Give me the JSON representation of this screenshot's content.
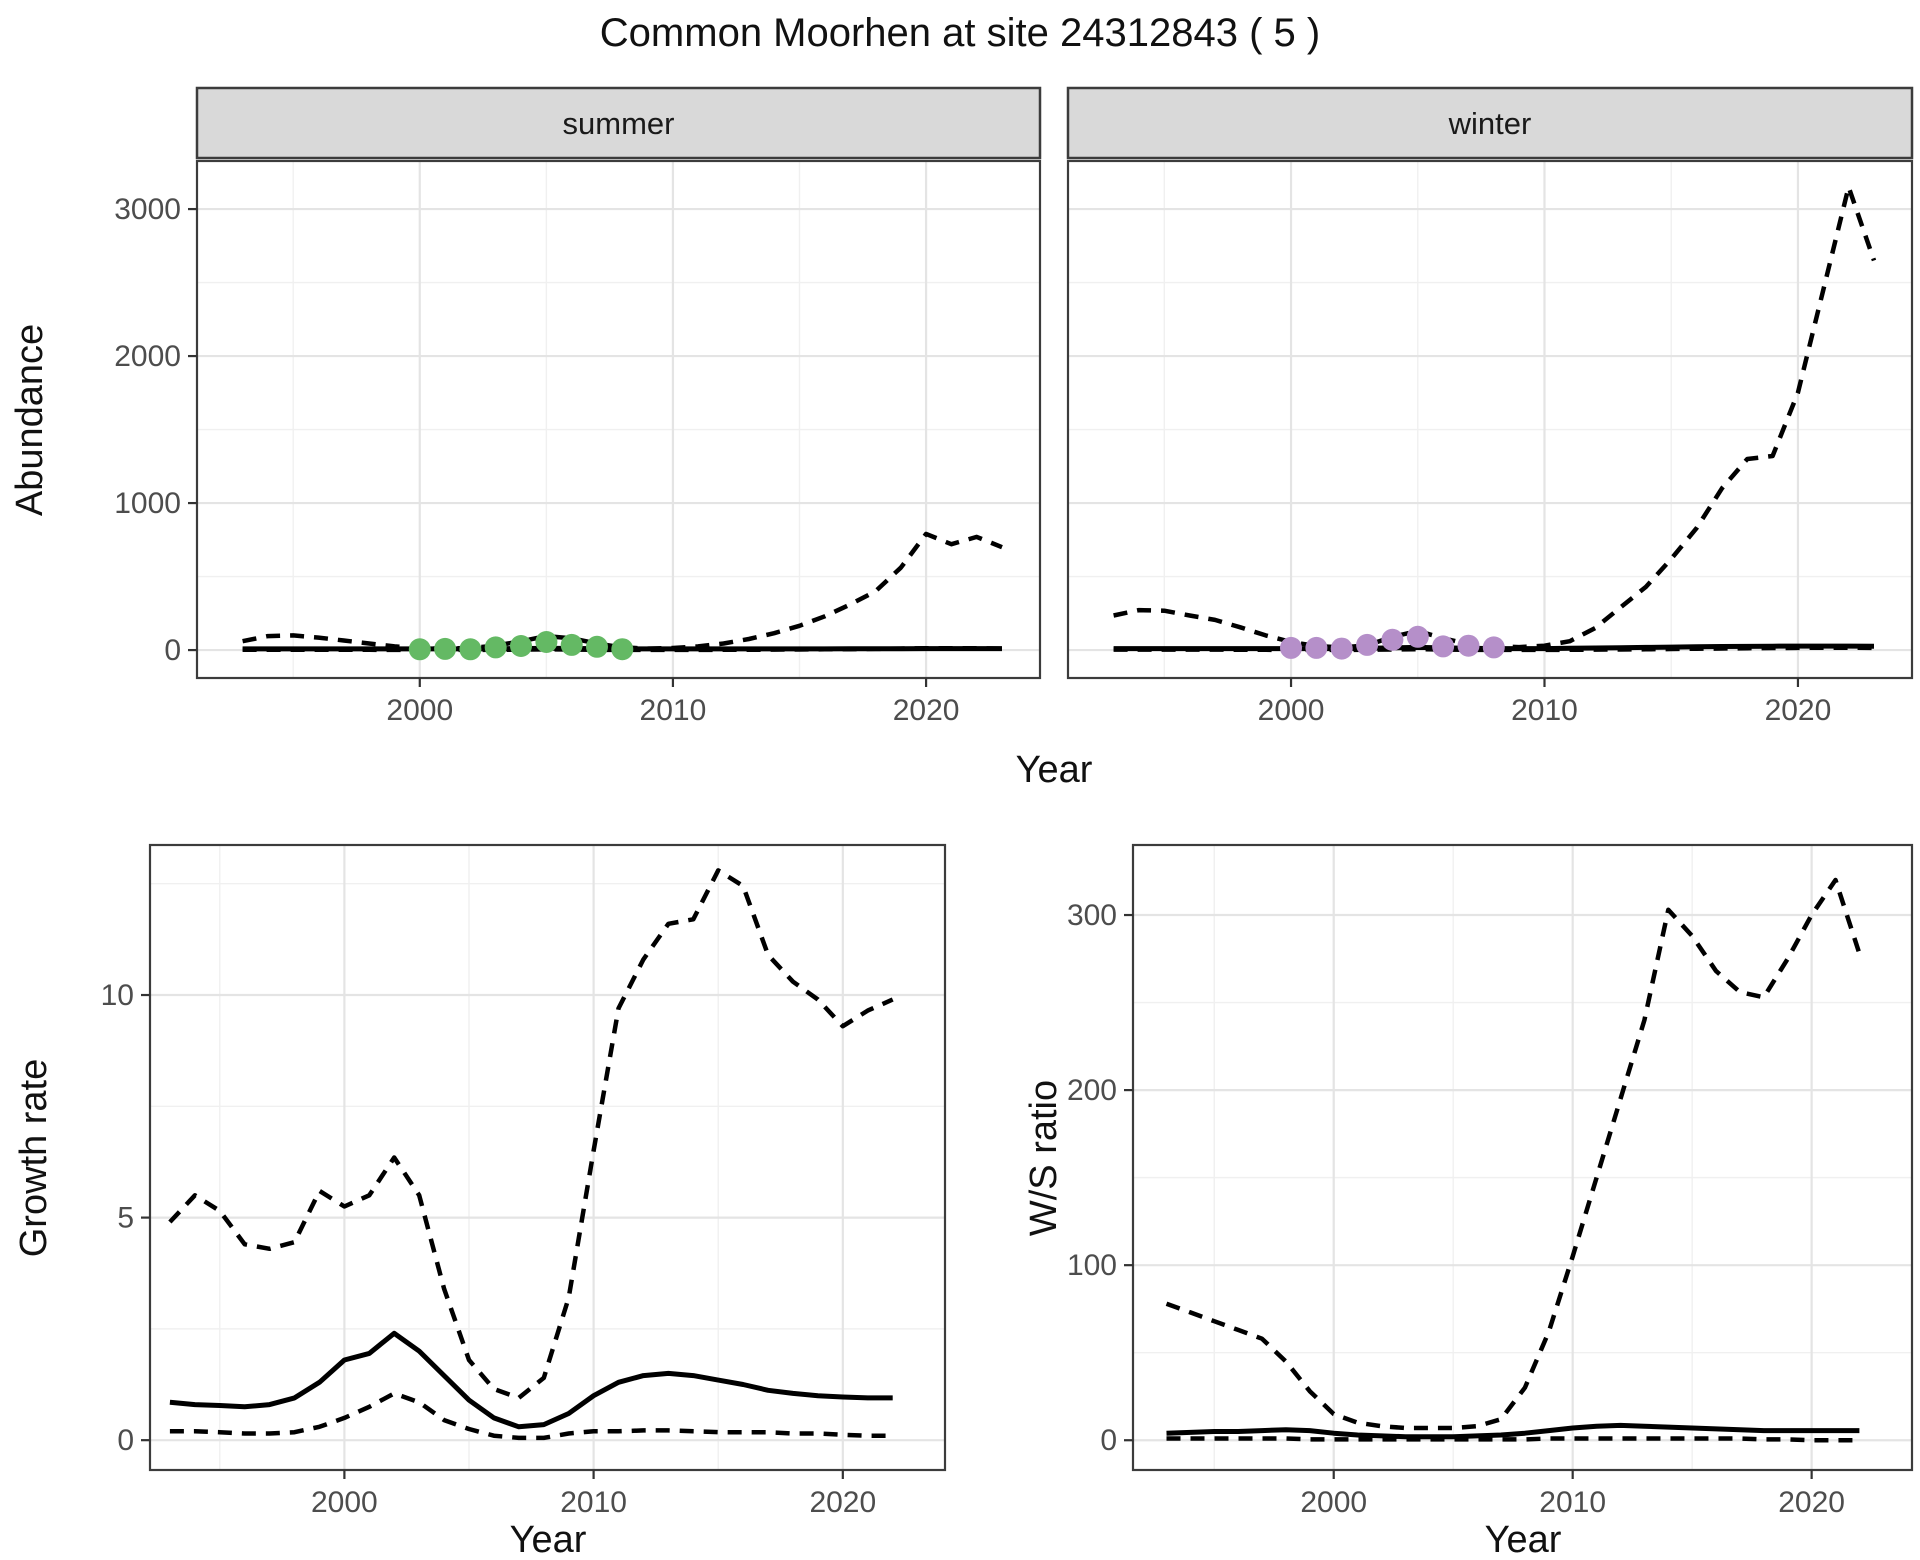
{
  "title": "Common Moorhen at site 24312843 ( 5 )",
  "colors": {
    "observed_summer": "#64b964",
    "observed_winter": "#b58fc9",
    "line": "#000000",
    "strip_bg": "#d9d9d9",
    "panel_border": "#3c3c3c",
    "grid_major": "#e4e4e4",
    "grid_minor": "#f0f0f0",
    "tick_label": "#4d4d4d"
  },
  "chart_data": [
    {
      "id": "abundance_summer",
      "type": "line",
      "facet_label": "summer",
      "xlabel": "Year",
      "ylabel": "Abundance",
      "x_ticks": [
        2000,
        2010,
        2020
      ],
      "x_minor": [
        1995,
        2005,
        2015
      ],
      "y_ticks": [
        0,
        1000,
        2000,
        3000
      ],
      "y_minor": [
        500,
        1500,
        2500
      ],
      "xlim": [
        1991.2,
        2024.5
      ],
      "ylim": [
        -190,
        3327
      ],
      "years": [
        1993,
        1994,
        1995,
        1996,
        1997,
        1998,
        1999,
        2000,
        2001,
        2002,
        2003,
        2004,
        2005,
        2006,
        2007,
        2008,
        2009,
        2010,
        2011,
        2012,
        2013,
        2014,
        2015,
        2016,
        2017,
        2018,
        2019,
        2020,
        2021,
        2022,
        2023
      ],
      "series": [
        {
          "name": "lower_ci",
          "style": "dashed",
          "values": [
            2,
            2,
            2,
            2,
            2,
            2,
            1,
            1,
            1,
            1,
            2,
            3,
            5,
            4,
            2,
            1,
            1,
            1,
            1,
            2,
            2,
            3,
            4,
            5,
            6,
            8,
            10,
            12,
            12,
            12,
            10
          ]
        },
        {
          "name": "upper_ci",
          "style": "dashed",
          "values": [
            60,
            95,
            100,
            85,
            65,
            45,
            25,
            12,
            10,
            14,
            30,
            60,
            95,
            80,
            45,
            18,
            10,
            14,
            25,
            45,
            75,
            115,
            165,
            230,
            310,
            400,
            560,
            790,
            720,
            770,
            700
          ]
        },
        {
          "name": "fitted",
          "style": "solid",
          "values": [
            8,
            8,
            8,
            8,
            8,
            8,
            8,
            8,
            8,
            8,
            9,
            10,
            12,
            11,
            10,
            8,
            8,
            8,
            8,
            8,
            8,
            8,
            8,
            8,
            9,
            9,
            9,
            10,
            10,
            10,
            10
          ]
        },
        {
          "name": "observed",
          "style": "points",
          "color": "#64b964",
          "years": [
            2000,
            2001,
            2002,
            2003,
            2004,
            2005,
            2006,
            2007,
            2008
          ],
          "values": [
            5,
            8,
            5,
            18,
            28,
            55,
            35,
            22,
            6
          ]
        }
      ]
    },
    {
      "id": "abundance_winter",
      "type": "line",
      "facet_label": "winter",
      "xlabel": "Year",
      "ylabel": "Abundance",
      "x_ticks": [
        2000,
        2010,
        2020
      ],
      "x_minor": [
        1995,
        2005,
        2015
      ],
      "y_ticks": [
        0,
        1000,
        2000,
        3000
      ],
      "y_minor": [
        500,
        1500,
        2500
      ],
      "xlim": [
        1991.2,
        2024.5
      ],
      "ylim": [
        -190,
        3327
      ],
      "years": [
        1993,
        1994,
        1995,
        1996,
        1997,
        1998,
        1999,
        2000,
        2001,
        2002,
        2003,
        2004,
        2005,
        2006,
        2007,
        2008,
        2009,
        2010,
        2011,
        2012,
        2013,
        2014,
        2015,
        2016,
        2017,
        2018,
        2019,
        2020,
        2021,
        2022,
        2023
      ],
      "series": [
        {
          "name": "lower_ci",
          "style": "dashed",
          "values": [
            3,
            3,
            3,
            3,
            3,
            2,
            2,
            1,
            1,
            1,
            2,
            4,
            6,
            4,
            2,
            1,
            1,
            1,
            2,
            3,
            4,
            5,
            7,
            9,
            11,
            13,
            14,
            15,
            16,
            16,
            15
          ]
        },
        {
          "name": "upper_ci",
          "style": "dashed",
          "values": [
            235,
            272,
            268,
            235,
            205,
            155,
            100,
            55,
            28,
            18,
            32,
            90,
            130,
            80,
            40,
            25,
            20,
            30,
            60,
            150,
            290,
            430,
            620,
            830,
            1100,
            1300,
            1320,
            1750,
            2450,
            3150,
            2650
          ]
        },
        {
          "name": "fitted",
          "style": "solid",
          "values": [
            10,
            10,
            10,
            10,
            10,
            10,
            10,
            10,
            10,
            10,
            12,
            15,
            18,
            15,
            12,
            10,
            10,
            10,
            12,
            14,
            16,
            18,
            20,
            22,
            24,
            25,
            26,
            27,
            27,
            27,
            26
          ]
        },
        {
          "name": "observed",
          "style": "points",
          "color": "#b58fc9",
          "years": [
            2000,
            2001,
            2002,
            2003,
            2004,
            2005,
            2006,
            2007,
            2008
          ],
          "values": [
            15,
            15,
            10,
            35,
            70,
            90,
            25,
            30,
            18
          ]
        }
      ]
    },
    {
      "id": "growth_rate",
      "type": "line",
      "facet_label": "",
      "xlabel": "Year",
      "ylabel": "Growth rate",
      "x_ticks": [
        2000,
        2010,
        2020
      ],
      "x_minor": [
        1995,
        2005,
        2015
      ],
      "y_ticks": [
        0,
        5,
        10
      ],
      "y_minor": [
        2.5,
        7.5,
        12.5
      ],
      "xlim": [
        1992.2,
        2024.1
      ],
      "ylim": [
        -0.67,
        13.37
      ],
      "years": [
        1993,
        1994,
        1995,
        1996,
        1997,
        1998,
        1999,
        2000,
        2001,
        2002,
        2003,
        2004,
        2005,
        2006,
        2007,
        2008,
        2009,
        2010,
        2011,
        2012,
        2013,
        2014,
        2015,
        2016,
        2017,
        2018,
        2019,
        2020,
        2021,
        2022
      ],
      "series": [
        {
          "name": "lower_ci",
          "style": "dashed",
          "values": [
            0.2,
            0.2,
            0.18,
            0.15,
            0.15,
            0.18,
            0.3,
            0.5,
            0.75,
            1.05,
            0.85,
            0.45,
            0.25,
            0.1,
            0.05,
            0.05,
            0.15,
            0.2,
            0.2,
            0.22,
            0.22,
            0.2,
            0.18,
            0.18,
            0.18,
            0.15,
            0.15,
            0.12,
            0.1,
            0.1
          ]
        },
        {
          "name": "upper_ci",
          "style": "dashed",
          "values": [
            4.9,
            5.5,
            5.15,
            4.4,
            4.3,
            4.45,
            5.6,
            5.25,
            5.5,
            6.35,
            5.5,
            3.4,
            1.8,
            1.15,
            0.95,
            1.4,
            3.2,
            6.5,
            9.7,
            10.8,
            11.6,
            11.7,
            12.8,
            12.45,
            10.9,
            10.3,
            9.9,
            9.3,
            9.65,
            9.9
          ]
        },
        {
          "name": "fitted",
          "style": "solid",
          "values": [
            0.85,
            0.8,
            0.78,
            0.75,
            0.8,
            0.95,
            1.3,
            1.8,
            1.95,
            2.4,
            2.0,
            1.45,
            0.9,
            0.5,
            0.3,
            0.35,
            0.6,
            1.0,
            1.3,
            1.45,
            1.5,
            1.45,
            1.35,
            1.25,
            1.12,
            1.05,
            1.0,
            0.97,
            0.95,
            0.95
          ]
        }
      ]
    },
    {
      "id": "ws_ratio",
      "type": "line",
      "facet_label": "",
      "xlabel": "Year",
      "ylabel": "W/S ratio",
      "x_ticks": [
        2000,
        2010,
        2020
      ],
      "x_minor": [
        1995,
        2005,
        2015
      ],
      "y_ticks": [
        0,
        100,
        200,
        300
      ],
      "y_minor": [
        50,
        150,
        250
      ],
      "xlim": [
        1991.6,
        2024.2
      ],
      "ylim": [
        -17,
        340
      ],
      "years": [
        1993,
        1994,
        1995,
        1996,
        1997,
        1998,
        1999,
        2000,
        2001,
        2002,
        2003,
        2004,
        2005,
        2006,
        2007,
        2008,
        2009,
        2010,
        2011,
        2012,
        2013,
        2014,
        2015,
        2016,
        2017,
        2018,
        2019,
        2020,
        2021,
        2022
      ],
      "series": [
        {
          "name": "lower_ci",
          "style": "dashed",
          "values": [
            1,
            1,
            1,
            1,
            1,
            1,
            0.5,
            0.5,
            0.5,
            0.5,
            0.5,
            0.5,
            0.5,
            0.5,
            0.5,
            0.5,
            1,
            1,
            1,
            1,
            1,
            1,
            1,
            1,
            1,
            0.5,
            0.5,
            0,
            0,
            0
          ]
        },
        {
          "name": "upper_ci",
          "style": "dashed",
          "values": [
            78,
            73,
            68,
            63,
            58,
            45,
            28,
            15,
            10,
            8,
            7,
            7,
            7,
            8,
            12,
            30,
            62,
            105,
            150,
            195,
            240,
            303,
            288,
            268,
            256,
            253,
            275,
            300,
            320,
            278
          ]
        },
        {
          "name": "fitted",
          "style": "solid",
          "values": [
            4,
            4.5,
            5,
            5,
            5.5,
            6,
            5.5,
            4,
            3,
            2.5,
            2,
            2,
            2,
            2.5,
            3,
            4,
            5.5,
            7,
            8,
            8.5,
            8,
            7.5,
            7,
            6.5,
            6,
            5.5,
            5.5,
            5.5,
            5.5,
            5.5
          ]
        }
      ]
    }
  ]
}
